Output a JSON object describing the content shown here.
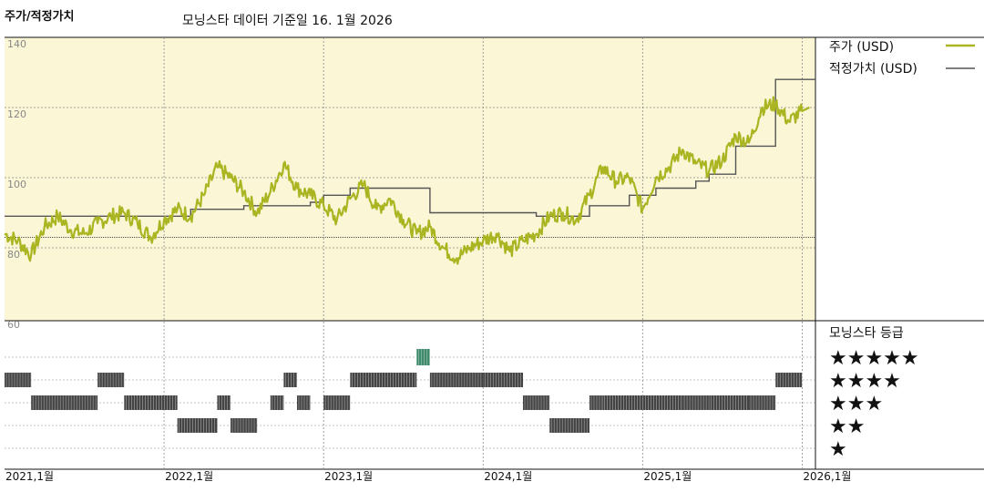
{
  "header": {
    "title": "주가/적정가치",
    "subtitle": "모닝스타 데이터 기준일 16. 1월 2026"
  },
  "legend": {
    "price_label": "주가 (USD)",
    "fair_label": "적정가치 (USD)",
    "rating_title": "모닝스타 등급"
  },
  "colors": {
    "price": "#aab521",
    "fair": "#555555",
    "upper_bg": "#faf6d6",
    "grid": "#888888",
    "ratings_bar": "#444444",
    "five_star_bar": "#3f8a6a"
  },
  "chart_data": [
    {
      "type": "line",
      "title": "주가/적정가치",
      "ylim": [
        60,
        140
      ],
      "yticks": [
        60,
        80,
        100,
        120,
        140
      ],
      "xticks": [
        "2021,1월",
        "2022,1월",
        "2023,1월",
        "2024,1월",
        "2025,1월",
        "2026,1월"
      ],
      "xlim": [
        "2021-01",
        "2026-02"
      ],
      "grid": true,
      "legend_position": "right",
      "series": [
        {
          "name": "주가 (USD)",
          "points": [
            [
              "2021-01",
              84
            ],
            [
              "2021-02",
              82
            ],
            [
              "2021-03",
              78
            ],
            [
              "2021-04",
              86
            ],
            [
              "2021-05",
              89
            ],
            [
              "2021-06",
              85
            ],
            [
              "2021-07",
              84
            ],
            [
              "2021-08",
              87
            ],
            [
              "2021-09",
              89
            ],
            [
              "2021-10",
              90
            ],
            [
              "2021-11",
              87
            ],
            [
              "2021-12",
              83
            ],
            [
              "2022-01",
              88
            ],
            [
              "2022-02",
              91
            ],
            [
              "2022-03",
              89
            ],
            [
              "2022-04",
              95
            ],
            [
              "2022-05",
              103
            ],
            [
              "2022-06",
              100
            ],
            [
              "2022-07",
              96
            ],
            [
              "2022-08",
              90
            ],
            [
              "2022-09",
              96
            ],
            [
              "2022-10",
              104
            ],
            [
              "2022-11",
              97
            ],
            [
              "2022-12",
              95
            ],
            [
              "2023-01",
              92
            ],
            [
              "2023-02",
              88
            ],
            [
              "2023-03",
              94
            ],
            [
              "2023-04",
              98
            ],
            [
              "2023-05",
              91
            ],
            [
              "2023-06",
              94
            ],
            [
              "2023-07",
              88
            ],
            [
              "2023-08",
              84
            ],
            [
              "2023-09",
              86
            ],
            [
              "2023-10",
              80
            ],
            [
              "2023-11",
              77
            ],
            [
              "2023-12",
              80
            ],
            [
              "2024-01",
              82
            ],
            [
              "2024-02",
              84
            ],
            [
              "2024-03",
              79
            ],
            [
              "2024-04",
              82
            ],
            [
              "2024-05",
              84
            ],
            [
              "2024-06",
              89
            ],
            [
              "2024-07",
              90
            ],
            [
              "2024-08",
              88
            ],
            [
              "2024-09",
              95
            ],
            [
              "2024-10",
              103
            ],
            [
              "2024-11",
              99
            ],
            [
              "2024-12",
              100
            ],
            [
              "2025-01",
              91
            ],
            [
              "2025-02",
              100
            ],
            [
              "2025-03",
              103
            ],
            [
              "2025-04",
              108
            ],
            [
              "2025-05",
              104
            ],
            [
              "2025-06",
              102
            ],
            [
              "2025-07",
              105
            ],
            [
              "2025-08",
              112
            ],
            [
              "2025-09",
              110
            ],
            [
              "2025-10",
              120
            ],
            [
              "2025-11",
              121
            ],
            [
              "2025-12",
              116
            ],
            [
              "2026-01",
              119
            ]
          ]
        },
        {
          "name": "적정가치 (USD)",
          "step": true,
          "points": [
            [
              "2021-01",
              89
            ],
            [
              "2022-03",
              89
            ],
            [
              "2022-03",
              91
            ],
            [
              "2022-07",
              91
            ],
            [
              "2022-07",
              92
            ],
            [
              "2022-12",
              92
            ],
            [
              "2022-12",
              93
            ],
            [
              "2023-01",
              93
            ],
            [
              "2023-01",
              95
            ],
            [
              "2023-03",
              95
            ],
            [
              "2023-03",
              97
            ],
            [
              "2023-09",
              97
            ],
            [
              "2023-09",
              90
            ],
            [
              "2024-05",
              90
            ],
            [
              "2024-05",
              89
            ],
            [
              "2024-09",
              89
            ],
            [
              "2024-09",
              92
            ],
            [
              "2024-12",
              92
            ],
            [
              "2024-12",
              95
            ],
            [
              "2025-02",
              95
            ],
            [
              "2025-02",
              97
            ],
            [
              "2025-05",
              97
            ],
            [
              "2025-05",
              99
            ],
            [
              "2025-06",
              99
            ],
            [
              "2025-06",
              101
            ],
            [
              "2025-08",
              101
            ],
            [
              "2025-08",
              109
            ],
            [
              "2025-11",
              109
            ],
            [
              "2025-11",
              128
            ],
            [
              "2026-02",
              128
            ]
          ]
        }
      ]
    },
    {
      "type": "heatmap",
      "title": "모닝스타 등급",
      "rows": [
        "★★★★★",
        "★★★★",
        "★★★",
        "★★",
        "★"
      ],
      "star_counts": [
        5,
        4,
        3,
        2,
        1
      ],
      "periods": [
        {
          "start": "2021-01",
          "end": "2021-03",
          "stars": 4
        },
        {
          "start": "2021-03",
          "end": "2021-08",
          "stars": 3
        },
        {
          "start": "2021-08",
          "end": "2021-10",
          "stars": 4
        },
        {
          "start": "2021-10",
          "end": "2022-02",
          "stars": 3
        },
        {
          "start": "2022-02",
          "end": "2022-05",
          "stars": 2
        },
        {
          "start": "2022-05",
          "end": "2022-06",
          "stars": 3
        },
        {
          "start": "2022-06",
          "end": "2022-08",
          "stars": 2
        },
        {
          "start": "2022-09",
          "end": "2022-10",
          "stars": 3
        },
        {
          "start": "2022-10",
          "end": "2022-11",
          "stars": 4
        },
        {
          "start": "2022-11",
          "end": "2022-12",
          "stars": 3
        },
        {
          "start": "2023-01",
          "end": "2023-03",
          "stars": 3
        },
        {
          "start": "2023-03",
          "end": "2023-08",
          "stars": 4
        },
        {
          "start": "2023-08",
          "end": "2023-09",
          "stars": 5
        },
        {
          "start": "2023-09",
          "end": "2024-01",
          "stars": 4
        },
        {
          "start": "2024-01",
          "end": "2024-04",
          "stars": 4
        },
        {
          "start": "2024-04",
          "end": "2024-06",
          "stars": 3
        },
        {
          "start": "2024-06",
          "end": "2024-09",
          "stars": 2
        },
        {
          "start": "2024-09",
          "end": "2024-10",
          "stars": 3
        },
        {
          "start": "2024-10",
          "end": "2025-04",
          "stars": 3
        },
        {
          "start": "2025-04",
          "end": "2025-06",
          "stars": 3
        },
        {
          "start": "2025-06",
          "end": "2025-09",
          "stars": 3
        },
        {
          "start": "2025-09",
          "end": "2025-11",
          "stars": 3
        },
        {
          "start": "2025-11",
          "end": "2026-01",
          "stars": 4
        }
      ]
    }
  ]
}
